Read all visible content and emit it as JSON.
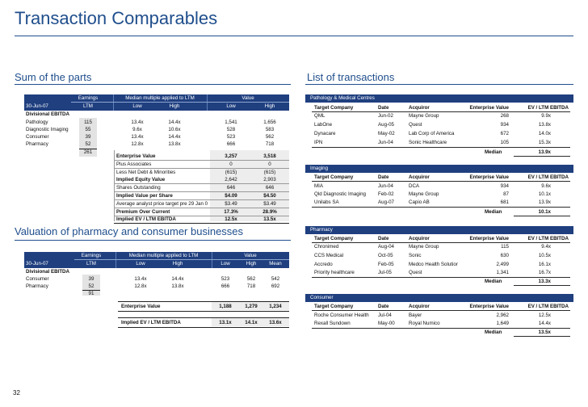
{
  "page": {
    "title": "Transaction Comparables",
    "page_number": "32"
  },
  "sum": {
    "title": "Sum of the parts",
    "h1": {
      "earnings": "Earnings",
      "mult": "Median multiple applied to LTM",
      "value": "Value"
    },
    "h2": {
      "date": "30-Jun-07",
      "ltm": "LTM",
      "low": "Low",
      "high": "High",
      "vlow": "Low",
      "vhigh": "High"
    },
    "div_label": "Divisional EBITDA",
    "rows": [
      {
        "name": "Pathology",
        "ebitda": "115",
        "low": "13.4x",
        "high": "14.4x",
        "vlow": "1,541",
        "vhigh": "1,656"
      },
      {
        "name": "Diagnostic Imaging",
        "ebitda": "55",
        "low": "9.6x",
        "high": "10.6x",
        "vlow": "528",
        "vhigh": "583"
      },
      {
        "name": "Consumer",
        "ebitda": "39",
        "low": "13.4x",
        "high": "14.4x",
        "vlow": "523",
        "vhigh": "562"
      },
      {
        "name": "Pharmacy",
        "ebitda": "52",
        "low": "12.8x",
        "high": "13.8x",
        "vlow": "666",
        "vhigh": "718"
      }
    ],
    "total": "261",
    "bridge": [
      {
        "label": "Enterprise Value",
        "low": "3,257",
        "high": "3,518",
        "bold": true
      },
      {
        "label": "Plus Associates",
        "low": "0",
        "high": "0",
        "bold": false
      },
      {
        "label": "Less Net Debt & Minorities",
        "low": "(615)",
        "high": "(615)",
        "bold": false
      },
      {
        "label": "Implied Equity Value",
        "low": "2,642",
        "high": "2,903",
        "bold": true
      },
      {
        "label": "Shares Outstanding",
        "low": "646",
        "high": "646",
        "bold": false
      },
      {
        "label": "Implied Value per Share",
        "low": "$4.09",
        "high": "$4.50",
        "bold": true
      },
      {
        "label": "Average analyst price target pre 29 Jan 0",
        "low": "$3.49",
        "high": "$3.49",
        "bold": false
      },
      {
        "label": "Premium Over Current",
        "low": "17.3%",
        "high": "28.9%",
        "bold": true
      },
      {
        "label": "Implied EV / LTM EBITDA",
        "low": "12.5x",
        "high": "13.5x",
        "bold": true
      }
    ]
  },
  "val": {
    "title": "Valuation of pharmacy and consumer businesses",
    "h1": {
      "earnings": "Earnings",
      "mult": "Median multiple applied to LTM",
      "value": "Value"
    },
    "h2": {
      "date": "30-Jun-07",
      "ltm": "LTM",
      "low": "Low",
      "high": "High",
      "vlow": "Low",
      "vhigh": "High",
      "mean": "Mean"
    },
    "div_label": "Divisional EBITDA",
    "rows": [
      {
        "name": "Consumer",
        "ebitda": "39",
        "low": "13.4x",
        "high": "14.4x",
        "vlow": "523",
        "vhigh": "562",
        "mean": "542"
      },
      {
        "name": "Pharmacy",
        "ebitda": "52",
        "low": "12.8x",
        "high": "13.8x",
        "vlow": "666",
        "vhigh": "718",
        "mean": "692"
      }
    ],
    "total": "91",
    "ev": {
      "label": "Enterprise Value",
      "low": "1,188",
      "high": "1,279",
      "mean": "1,234"
    },
    "mult": {
      "label": "Implied EV / LTM EBITDA",
      "low": "13.1x",
      "high": "14.1x",
      "mean": "13.6x"
    }
  },
  "tx": {
    "title": "List of transactions",
    "cols": {
      "target": "Target Company",
      "date": "Date",
      "acquirer": "Acquiror",
      "ev": "Enterprise Value",
      "mult": "EV / LTM EBITDA"
    },
    "median_label": "Median",
    "groups": [
      {
        "name": "Pathology & Medical Centres",
        "rows": [
          {
            "target": "QML",
            "date": "Jun-02",
            "acquirer": "Mayne Group",
            "ev": "268",
            "mult": "9.9x"
          },
          {
            "target": "LabOne",
            "date": "Aug-05",
            "acquirer": "Quest",
            "ev": "934",
            "mult": "13.8x"
          },
          {
            "target": "Dynacare",
            "date": "May-02",
            "acquirer": "Lab Corp of America",
            "ev": "672",
            "mult": "14.0x"
          },
          {
            "target": "IPN",
            "date": "Jun-04",
            "acquirer": "Sonic Healthcare",
            "ev": "105",
            "mult": "15.3x"
          }
        ],
        "median": "13.9x"
      },
      {
        "name": "Imaging",
        "rows": [
          {
            "target": "MIA",
            "date": "Jun-04",
            "acquirer": "DCA",
            "ev": "934",
            "mult": "9.6x"
          },
          {
            "target": "Qld Diagnostic Imaging",
            "date": "Feb-02",
            "acquirer": "Mayne Group",
            "ev": "87",
            "mult": "10.1x"
          },
          {
            "target": "Unilabs SA",
            "date": "Aug-07",
            "acquirer": "Capio AB",
            "ev": "681",
            "mult": "13.9x"
          }
        ],
        "median": "10.1x"
      },
      {
        "name": "Pharmacy",
        "rows": [
          {
            "target": "Chronimed",
            "date": "Aug-04",
            "acquirer": "Mayne Group",
            "ev": "115",
            "mult": "9.4x"
          },
          {
            "target": "CCS Medical",
            "date": "Oct-05",
            "acquirer": "Sonic",
            "ev": "630",
            "mult": "10.5x"
          },
          {
            "target": "Accredo",
            "date": "Feb-05",
            "acquirer": "Medco Health Solutior",
            "ev": "2,499",
            "mult": "16.1x"
          },
          {
            "target": "Priority healthcare",
            "date": "Jul-05",
            "acquirer": "Quest",
            "ev": "1,341",
            "mult": "16.7x"
          }
        ],
        "median": "13.3x"
      },
      {
        "name": "Consumer",
        "rows": [
          {
            "target": "Roche Consumer Health",
            "date": "Jul-04",
            "acquirer": "Bayer",
            "ev": "2,962",
            "mult": "12.5x"
          },
          {
            "target": "Rexall Sundown",
            "date": "May-00",
            "acquirer": "Royal Numico",
            "ev": "1,649",
            "mult": "14.4x"
          }
        ],
        "median": "13.5x"
      }
    ]
  }
}
